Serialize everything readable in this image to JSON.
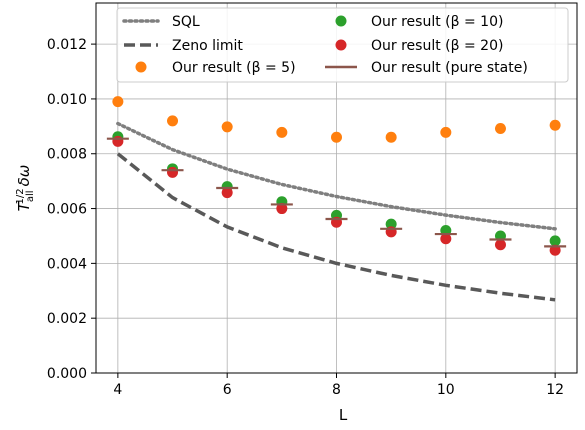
{
  "chart_data": {
    "type": "scatter",
    "xlabel": "L",
    "ylabel": "T_all^{1/2} δω",
    "xlim": [
      3.6,
      12.4
    ],
    "ylim": [
      0.0,
      0.0135
    ],
    "grid": true,
    "legend_position": "top",
    "x_ticks": [
      4,
      6,
      8,
      10,
      12
    ],
    "x_tick_labels": [
      "4",
      "6",
      "8",
      "10",
      "12"
    ],
    "y_ticks": [
      0.0,
      0.002,
      0.004,
      0.006,
      0.008,
      0.01,
      0.012
    ],
    "y_tick_labels": [
      "0.000",
      "0.002",
      "0.004",
      "0.006",
      "0.008",
      "0.010",
      "0.012"
    ],
    "series": [
      {
        "key": "sql",
        "name": "SQL",
        "kind": "dotted-line",
        "color": "#7f7f7f",
        "x": [
          4,
          5,
          6,
          7,
          8,
          9,
          10,
          11,
          12
        ],
        "y": [
          0.0091,
          0.00815,
          0.00744,
          0.00688,
          0.00644,
          0.00607,
          0.00576,
          0.00549,
          0.00526
        ]
      },
      {
        "key": "zeno",
        "name": "Zeno limit",
        "kind": "dashed-line",
        "color": "#595959",
        "x": [
          4,
          5,
          6,
          7,
          8,
          9,
          10,
          11,
          12
        ],
        "y": [
          0.008,
          0.0064,
          0.00533,
          0.00457,
          0.004,
          0.00356,
          0.0032,
          0.00291,
          0.00267
        ]
      },
      {
        "key": "beta5",
        "name": "Our result (β = 5)",
        "kind": "points",
        "color": "#ff7f0e",
        "x": [
          4,
          5,
          6,
          7,
          8,
          9,
          10,
          11,
          12
        ],
        "y": [
          0.0099,
          0.0092,
          0.00898,
          0.00878,
          0.0086,
          0.0086,
          0.00878,
          0.00892,
          0.00904
        ]
      },
      {
        "key": "beta10",
        "name": "Our result (β = 10)",
        "kind": "points",
        "color": "#2ca02c",
        "x": [
          4,
          5,
          6,
          7,
          8,
          9,
          10,
          11,
          12
        ],
        "y": [
          0.00862,
          0.00745,
          0.0068,
          0.00625,
          0.00575,
          0.00543,
          0.0052,
          0.005,
          0.00482
        ]
      },
      {
        "key": "beta20",
        "name": "Our result (β = 20)",
        "kind": "points",
        "color": "#d62728",
        "x": [
          4,
          5,
          6,
          7,
          8,
          9,
          10,
          11,
          12
        ],
        "y": [
          0.00845,
          0.00732,
          0.00658,
          0.006,
          0.0055,
          0.00515,
          0.0049,
          0.00468,
          0.00448
        ]
      },
      {
        "key": "pure",
        "name": "Our result (pure state)",
        "kind": "hline-markers",
        "color": "#8c564b",
        "x": [
          4,
          5,
          6,
          7,
          8,
          9,
          10,
          11,
          12
        ],
        "y": [
          0.00855,
          0.0074,
          0.00675,
          0.00615,
          0.00562,
          0.00526,
          0.00507,
          0.00487,
          0.00462
        ]
      }
    ]
  }
}
